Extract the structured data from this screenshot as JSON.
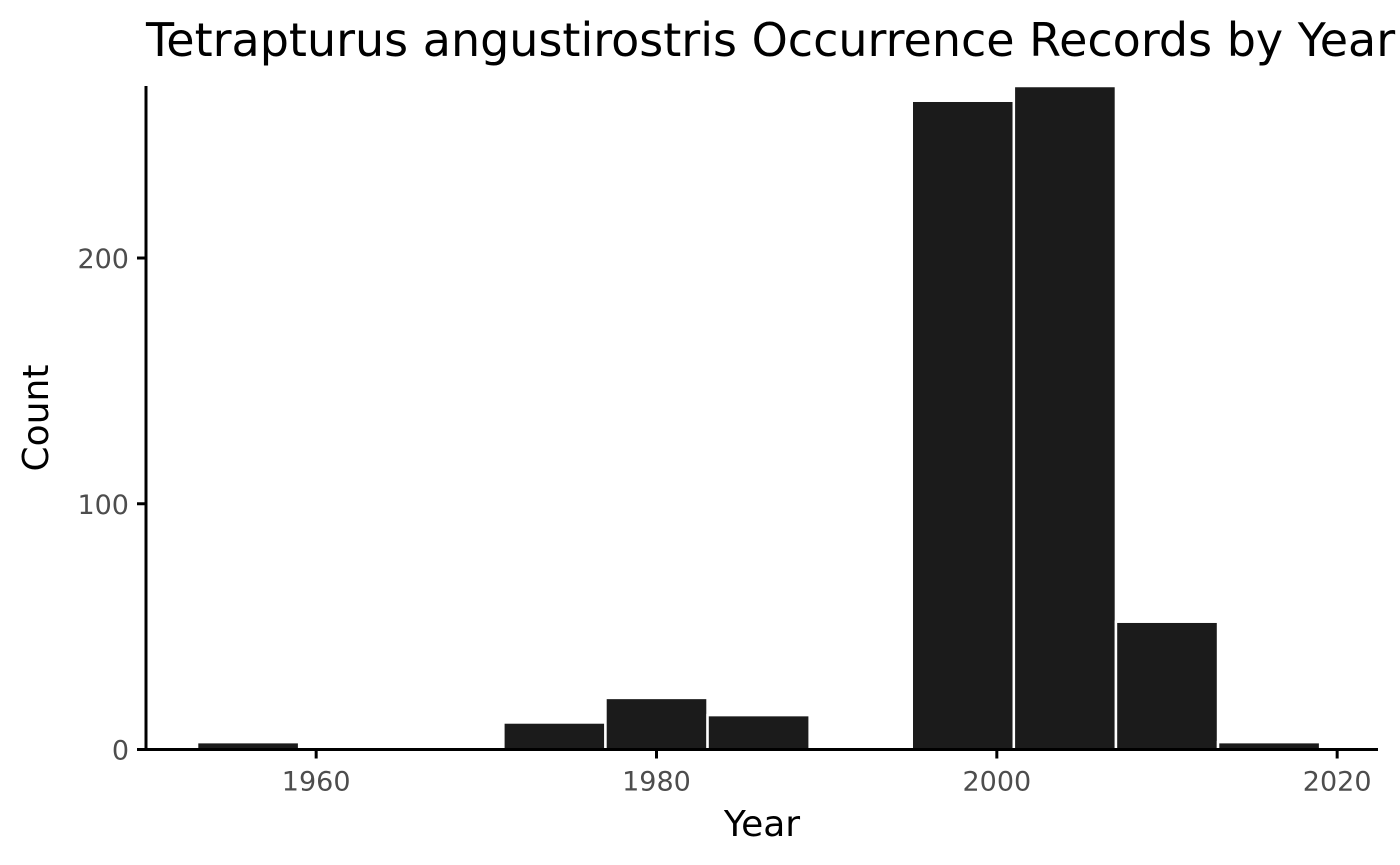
{
  "chart_data": {
    "type": "bar",
    "title": "Tetrapturus angustirostris Occurrence Records by Year",
    "xlabel": "Year",
    "ylabel": "Count",
    "xlim": [
      1950,
      2022.4
    ],
    "ylim": [
      0,
      270
    ],
    "x_ticks": [
      1960,
      1980,
      2000,
      2020
    ],
    "y_ticks": [
      0,
      100,
      200
    ],
    "bin_width": 6,
    "bar_color": "#1b1b1b",
    "bar_outline_color": "#ffffff",
    "bins": [
      {
        "x0": 1953,
        "x1": 1959,
        "value": 3
      },
      {
        "x0": 1959,
        "x1": 1965,
        "value": 0
      },
      {
        "x0": 1965,
        "x1": 1971,
        "value": 1
      },
      {
        "x0": 1971,
        "x1": 1977,
        "value": 11
      },
      {
        "x0": 1977,
        "x1": 1983,
        "value": 21
      },
      {
        "x0": 1983,
        "x1": 1989,
        "value": 14
      },
      {
        "x0": 1989,
        "x1": 1995,
        "value": 0
      },
      {
        "x0": 1995,
        "x1": 2001,
        "value": 264
      },
      {
        "x0": 2001,
        "x1": 2007,
        "value": 270
      },
      {
        "x0": 2007,
        "x1": 2013,
        "value": 52
      },
      {
        "x0": 2013,
        "x1": 2019,
        "value": 3
      }
    ],
    "grid": false,
    "legend": "none"
  }
}
